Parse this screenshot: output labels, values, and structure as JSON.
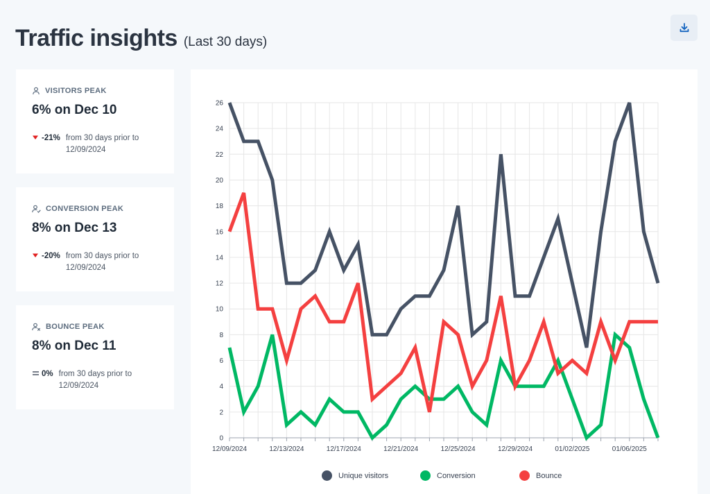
{
  "header": {
    "title": "Traffic insights",
    "subtitle": "(Last 30 days)",
    "download_icon": "download-icon"
  },
  "cards": [
    {
      "icon": "user-icon",
      "label": "VISITORS PEAK",
      "value": "6% on Dec 10",
      "delta_direction": "down",
      "delta_pct": "-21%",
      "delta_text": "from 30 days prior to 12/09/2024"
    },
    {
      "icon": "user-check-icon",
      "label": "CONVERSION PEAK",
      "value": "8% on Dec 13",
      "delta_direction": "down",
      "delta_pct": "-20%",
      "delta_text": "from 30 days prior to 12/09/2024"
    },
    {
      "icon": "user-x-icon",
      "label": "BOUNCE PEAK",
      "value": "8% on Dec 11",
      "delta_direction": "flat",
      "delta_pct": "0%",
      "delta_text": "from 30 days prior to 12/09/2024"
    }
  ],
  "colors": {
    "visitors": "#465265",
    "conversion": "#00b864",
    "bounce": "#f44040",
    "delta_down": "#e11d1d",
    "delta_flat": "#4b5563"
  },
  "chart_data": {
    "type": "line",
    "x_tick_labels": [
      "12/09/2024",
      "12/13/2024",
      "12/17/2024",
      "12/21/2024",
      "12/25/2024",
      "12/29/2024",
      "01/02/2025",
      "01/06/2025"
    ],
    "x_tick_every": 4,
    "y_ticks": [
      0,
      2,
      4,
      6,
      8,
      10,
      12,
      14,
      16,
      18,
      20,
      22,
      24,
      26
    ],
    "ylim": [
      0,
      26
    ],
    "grid": true,
    "legend_position": "bottom",
    "series": [
      {
        "name": "Unique visitors",
        "color": "#465265",
        "values": [
          26,
          23,
          23,
          20,
          12,
          12,
          13,
          16,
          13,
          15,
          8,
          8,
          10,
          11,
          11,
          13,
          18,
          8,
          9,
          22,
          11,
          11,
          14,
          17,
          12,
          7,
          16,
          23,
          26,
          16,
          12
        ]
      },
      {
        "name": "Conversion",
        "color": "#00b864",
        "values": [
          7,
          2,
          4,
          8,
          1,
          2,
          1,
          3,
          2,
          2,
          0,
          1,
          3,
          4,
          3,
          3,
          4,
          2,
          1,
          6,
          4,
          4,
          4,
          6,
          3,
          0,
          1,
          8,
          7,
          3,
          0
        ]
      },
      {
        "name": "Bounce",
        "color": "#f44040",
        "values": [
          16,
          19,
          10,
          10,
          6,
          10,
          11,
          9,
          9,
          12,
          3,
          4,
          5,
          7,
          2,
          9,
          8,
          4,
          6,
          11,
          4,
          6,
          9,
          5,
          6,
          5,
          9,
          6,
          9,
          9,
          9
        ]
      }
    ]
  }
}
